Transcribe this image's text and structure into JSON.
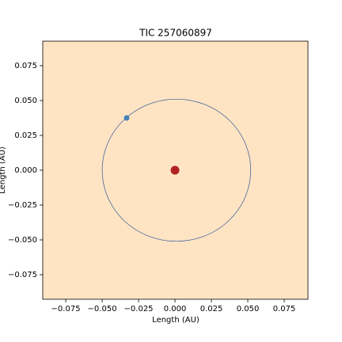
{
  "chart_data": {
    "type": "scatter",
    "title": "TIC 257060897",
    "xlabel": "Length (AU)",
    "ylabel": "Length (AU)",
    "background": "#ffe4c4",
    "xlim": [
      -0.0908,
      0.0913
    ],
    "ylim": [
      -0.0926,
      0.0926
    ],
    "xticks": [
      {
        "value": -0.075,
        "label": "−0.075"
      },
      {
        "value": -0.05,
        "label": "−0.050"
      },
      {
        "value": -0.025,
        "label": "−0.025"
      },
      {
        "value": 0,
        "label": "0.000"
      },
      {
        "value": 0.025,
        "label": "0.025"
      },
      {
        "value": 0.05,
        "label": "0.050"
      },
      {
        "value": 0.075,
        "label": "0.075"
      }
    ],
    "yticks": [
      {
        "value": -0.075,
        "label": "−0.075"
      },
      {
        "value": -0.05,
        "label": "−0.050"
      },
      {
        "value": -0.025,
        "label": "−0.025"
      },
      {
        "value": 0,
        "label": "0.000"
      },
      {
        "value": 0.025,
        "label": "0.025"
      },
      {
        "value": 0.05,
        "label": "0.050"
      },
      {
        "value": 0.075,
        "label": "0.075"
      }
    ],
    "orbit": {
      "center_x": 0.001,
      "center_y": 0,
      "radius": 0.051,
      "color": "#4a6a9a"
    },
    "series": [
      {
        "color": "#b22222",
        "x": [
          0
        ],
        "y": [
          0
        ]
      },
      {
        "color": "#4682b4",
        "x": [
          -0.0332
        ],
        "y": [
          0.0375
        ]
      }
    ]
  }
}
